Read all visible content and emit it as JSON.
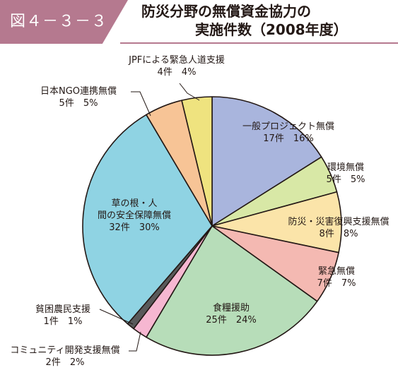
{
  "header": {
    "figure_label": "図４－３－３",
    "title_line1": "防災分野の無償資金協力の",
    "title_line2": "実施件数（2008年度）"
  },
  "colors": {
    "accent": "#b5798f",
    "text": "#231815",
    "outline": "#231815"
  },
  "chart_data": {
    "type": "pie",
    "title": "防災分野の無償資金協力の実施件数（2008年度）",
    "unit": "件",
    "slices": [
      {
        "name": "一般プロジェクト無償",
        "count_label": "17件",
        "pct_label": "16%",
        "value": 17,
        "percent": 16,
        "color": "#a9b5dd"
      },
      {
        "name": "環境無償",
        "count_label": "5件",
        "pct_label": "5%",
        "value": 5,
        "percent": 5,
        "color": "#d8e8a6"
      },
      {
        "name": "防災・災害復興支援無償",
        "count_label": "8件",
        "pct_label": "8%",
        "value": 8,
        "percent": 8,
        "color": "#fbe4a9"
      },
      {
        "name": "緊急無償",
        "count_label": "7件",
        "pct_label": "7%",
        "value": 7,
        "percent": 7,
        "color": "#f4b9b2"
      },
      {
        "name": "食糧援助",
        "count_label": "25件",
        "pct_label": "24%",
        "value": 25,
        "percent": 24,
        "color": "#b7ddb9"
      },
      {
        "name": "コミュニティ開発支援無償",
        "count_label": "2件",
        "pct_label": "2%",
        "value": 2,
        "percent": 2,
        "color": "#f6b7d1"
      },
      {
        "name": "貧困農民支援",
        "count_label": "1件",
        "pct_label": "1%",
        "value": 1,
        "percent": 1,
        "color": "#59595a"
      },
      {
        "name": "草の根・人間の安全保障無償",
        "count_label": "32件",
        "pct_label": "30%",
        "value": 32,
        "percent": 30,
        "color": "#8fd3e3"
      },
      {
        "name": "日本NGO連携無償",
        "count_label": "5件",
        "pct_label": "5%",
        "value": 5,
        "percent": 5,
        "color": "#f7c496"
      },
      {
        "name": "JPFによる緊急人道支援",
        "count_label": "4件",
        "pct_label": "4%",
        "value": 4,
        "percent": 4,
        "color": "#efe37f"
      }
    ]
  }
}
